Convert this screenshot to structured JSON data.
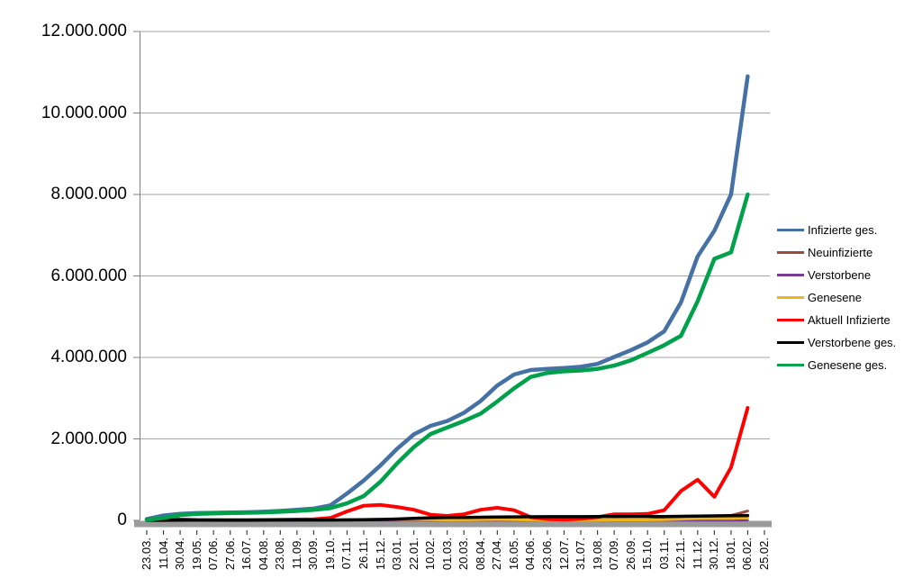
{
  "chart_data": {
    "type": "line",
    "title": "",
    "legend_position": "right",
    "x_axis": {
      "tick_labels": [
        "23.03.",
        "11.04.",
        "30.04.",
        "19.05.",
        "07.06.",
        "27.06.",
        "16.07.",
        "04.08.",
        "23.08.",
        "11.09.",
        "30.09.",
        "19.10.",
        "07.11.",
        "26.11.",
        "15.12.",
        "03.01.",
        "22.01.",
        "10.02.",
        "01.03.",
        "20.03.",
        "08.04.",
        "27.04.",
        "16.05.",
        "04.06.",
        "23.06.",
        "12.07.",
        "31.07.",
        "19.08.",
        "07.09.",
        "26.09.",
        "15.10.",
        "03.11.",
        "22.11.",
        "11.12.",
        "30.12.",
        "18.01.",
        "06.02.",
        "25.02."
      ]
    },
    "y_axis": {
      "min": 0,
      "max": 12000000,
      "gridline_step": 2000000,
      "tick_labels": [
        "0",
        "2.000.000",
        "4.000.000",
        "6.000.000",
        "8.000.000",
        "10.000.000",
        "12.000.000"
      ]
    },
    "series": [
      {
        "name": "Infizierte ges.",
        "color": "#4671A5",
        "values": [
          30000,
          120000,
          160000,
          178000,
          185000,
          193000,
          200000,
          212000,
          232000,
          260000,
          290000,
          370000,
          660000,
          980000,
          1350000,
          1760000,
          2110000,
          2320000,
          2440000,
          2640000,
          2930000,
          3310000,
          3580000,
          3690000,
          3720000,
          3740000,
          3770000,
          3840000,
          4010000,
          4180000,
          4370000,
          4640000,
          5350000,
          6480000,
          7110000,
          8000000,
          10900000
        ]
      },
      {
        "name": "Neuinfizierte",
        "color": "#9B4A42",
        "values": [
          3000,
          4000,
          2000,
          1000,
          500,
          500,
          500,
          1000,
          1500,
          2000,
          2500,
          7000,
          20000,
          22000,
          27000,
          22000,
          17000,
          9000,
          8000,
          17000,
          24000,
          23000,
          12000,
          3000,
          1000,
          1000,
          2000,
          8000,
          13000,
          10000,
          12000,
          34000,
          60000,
          70000,
          40000,
          120000,
          230000
        ]
      },
      {
        "name": "Verstorbene",
        "color": "#7A3B96",
        "values": [
          100,
          250,
          300,
          150,
          80,
          50,
          40,
          40,
          50,
          60,
          70,
          150,
          300,
          550,
          750,
          950,
          900,
          650,
          450,
          350,
          300,
          280,
          250,
          180,
          120,
          80,
          60,
          60,
          80,
          90,
          100,
          150,
          250,
          350,
          400,
          300,
          250
        ]
      },
      {
        "name": "Genesene",
        "color": "#EEB420",
        "values": [
          2000,
          4000,
          5000,
          3000,
          1500,
          1000,
          1000,
          1200,
          1800,
          2200,
          2500,
          4500,
          13000,
          20000,
          23000,
          25000,
          22000,
          15000,
          9000,
          11000,
          18000,
          22000,
          18000,
          8000,
          2500,
          1500,
          2500,
          6000,
          10000,
          10000,
          11000,
          16000,
          30000,
          45000,
          50000,
          46000,
          60000
        ]
      },
      {
        "name": "Aktuell Infizierte",
        "color": "#FF0000",
        "values": [
          20000,
          55000,
          25000,
          12000,
          8000,
          6000,
          6000,
          10000,
          15000,
          22000,
          26000,
          60000,
          220000,
          360000,
          380000,
          330000,
          260000,
          140000,
          110000,
          150000,
          260000,
          310000,
          250000,
          80000,
          30000,
          18000,
          40000,
          80000,
          150000,
          150000,
          160000,
          250000,
          720000,
          1000000,
          580000,
          1300000,
          2760000
        ]
      },
      {
        "name": "Verstorbene ges.",
        "color": "#000000",
        "values": [
          200,
          2800,
          6300,
          8000,
          8700,
          8900,
          9100,
          9200,
          9300,
          9400,
          9500,
          9800,
          11000,
          15000,
          23000,
          34000,
          50000,
          63000,
          70000,
          74000,
          77000,
          82000,
          86000,
          89000,
          90000,
          91000,
          91500,
          92000,
          92500,
          93000,
          94000,
          96000,
          99000,
          105000,
          111000,
          116000,
          119000
        ]
      },
      {
        "name": "Genesene ges.",
        "color": "#00A14B",
        "values": [
          10000,
          60000,
          130000,
          160000,
          172000,
          180000,
          188000,
          196000,
          212000,
          232000,
          258000,
          300000,
          420000,
          600000,
          950000,
          1400000,
          1800000,
          2120000,
          2280000,
          2440000,
          2620000,
          2920000,
          3240000,
          3520000,
          3620000,
          3660000,
          3680000,
          3720000,
          3800000,
          3930000,
          4110000,
          4300000,
          4530000,
          5380000,
          6420000,
          6580000,
          8000000
        ]
      }
    ]
  },
  "colors": {
    "gridline": "#A6A6A6",
    "axis_line": "#808080",
    "x_axis_bar": "#9B9B9B",
    "tick_mark": "#404040",
    "background": "#FFFFFF"
  }
}
